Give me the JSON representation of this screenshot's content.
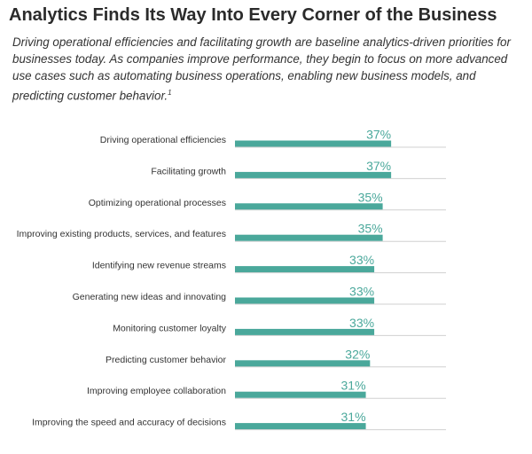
{
  "header": {
    "title": "Analytics Finds Its Way Into Every Corner of the Business",
    "intro": "Driving operational efficiencies and facilitating growth are baseline analytics-driven priorities for businesses today. As companies improve performance, they begin to focus on more advanced use cases such as automating business operations, enabling new business models, and predicting customer behavior.",
    "footnote_mark": "1"
  },
  "chart_data": {
    "type": "bar",
    "orientation": "horizontal",
    "bar_color": "#4aa89b",
    "value_suffix": "%",
    "xlim": [
      0,
      50
    ],
    "grid": false,
    "categories": [
      "Driving operational efficiencies",
      "Facilitating growth",
      "Optimizing operational processes",
      "Improving existing products, services, and features",
      "Identifying new revenue streams",
      "Generating new ideas and innovating",
      "Monitoring customer loyalty",
      "Predicting customer behavior",
      "Improving employee collaboration",
      "Improving the speed and accuracy of decisions"
    ],
    "values": [
      37,
      37,
      35,
      35,
      33,
      33,
      33,
      32,
      31,
      31
    ]
  }
}
